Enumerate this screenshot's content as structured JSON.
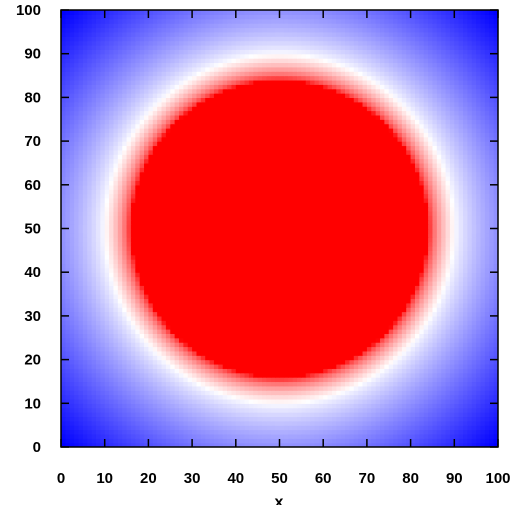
{
  "chart_data": {
    "type": "heatmap",
    "title": "",
    "xlabel": "x",
    "ylabel": "",
    "xlim": [
      0,
      100
    ],
    "ylim": [
      0,
      100
    ],
    "x_ticks": [
      "0",
      "10",
      "20",
      "30",
      "40",
      "50",
      "60",
      "70",
      "80",
      "90",
      "100"
    ],
    "y_ticks": [
      "0",
      "10",
      "20",
      "30",
      "40",
      "50",
      "60",
      "70",
      "80",
      "90",
      "100"
    ],
    "grid": false,
    "legend": "none",
    "colormap": {
      "low_color": "#0000ff",
      "mid_color": "#ffffff",
      "high_color": "#ff0000"
    },
    "field": {
      "shape": "radial",
      "center": [
        50,
        50
      ],
      "plateau_radius": 34,
      "white_radius": 40,
      "outer_radius": 70
    }
  }
}
